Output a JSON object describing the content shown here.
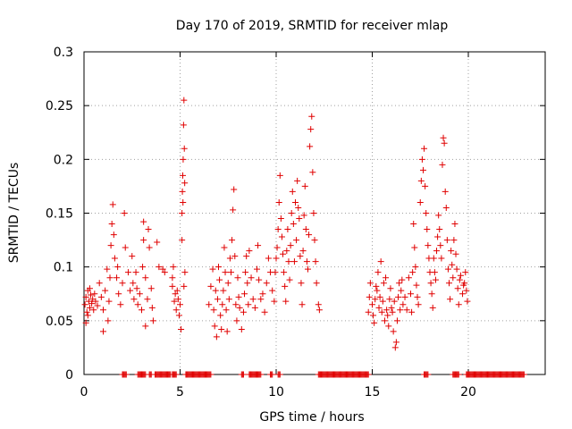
{
  "chart_data": {
    "type": "scatter",
    "title": "Day 170 of 2019, SRMTID for receiver mlap",
    "xlabel": "GPS time / hours",
    "ylabel": "SRMTID / TECUs",
    "xlim": [
      0,
      24
    ],
    "ylim": [
      0,
      0.3
    ],
    "grid": true,
    "x_ticks": [
      0,
      5,
      10,
      15,
      20
    ],
    "y_ticks": [
      0,
      0.05,
      0.1,
      0.15,
      0.2,
      0.25,
      0.3
    ],
    "x_tick_labels": [
      "0",
      "5",
      "10",
      "15",
      "20"
    ],
    "y_tick_labels": [
      "0",
      "0.05",
      "0.1",
      "0.15",
      "0.2",
      "0.25",
      "0.3"
    ],
    "marker": "+",
    "color": "#e00000",
    "series": [
      {
        "name": "SRMTID",
        "points": [
          [
            0.05,
            0.065
          ],
          [
            0.1,
            0.072
          ],
          [
            0.15,
            0.058
          ],
          [
            0.2,
            0.078
          ],
          [
            0.25,
            0.068
          ],
          [
            0.3,
            0.062
          ],
          [
            0.35,
            0.074
          ],
          [
            0.4,
            0.066
          ],
          [
            0.45,
            0.07
          ],
          [
            0.5,
            0.06
          ],
          [
            0.55,
            0.075
          ],
          [
            0.6,
            0.068
          ],
          [
            0.1,
            0.048
          ],
          [
            0.2,
            0.055
          ],
          [
            0.3,
            0.08
          ],
          [
            0.7,
            0.064
          ],
          [
            0.8,
            0.085
          ],
          [
            0.9,
            0.072
          ],
          [
            1.0,
            0.04
          ],
          [
            1.0,
            0.06
          ],
          [
            1.1,
            0.078
          ],
          [
            1.2,
            0.098
          ],
          [
            1.25,
            0.05
          ],
          [
            1.3,
            0.068
          ],
          [
            1.35,
            0.09
          ],
          [
            1.4,
            0.12
          ],
          [
            1.45,
            0.14
          ],
          [
            1.5,
            0.158
          ],
          [
            1.55,
            0.13
          ],
          [
            1.6,
            0.108
          ],
          [
            1.7,
            0.09
          ],
          [
            1.75,
            0.1
          ],
          [
            1.8,
            0.075
          ],
          [
            1.9,
            0.065
          ],
          [
            2.0,
            0.085
          ],
          [
            2.1,
            0.15
          ],
          [
            2.15,
            0.118
          ],
          [
            2.3,
            0.095
          ],
          [
            2.4,
            0.078
          ],
          [
            2.5,
            0.11
          ],
          [
            2.55,
            0.085
          ],
          [
            2.6,
            0.07
          ],
          [
            2.7,
            0.095
          ],
          [
            2.75,
            0.08
          ],
          [
            2.8,
            0.065
          ],
          [
            2.9,
            0.075
          ],
          [
            3.0,
            0.06
          ],
          [
            3.05,
            0.1
          ],
          [
            3.1,
            0.125
          ],
          [
            3.2,
            0.09
          ],
          [
            3.3,
            0.07
          ],
          [
            3.35,
            0.135
          ],
          [
            3.4,
            0.118
          ],
          [
            3.5,
            0.08
          ],
          [
            3.55,
            0.062
          ],
          [
            3.6,
            0.05
          ],
          [
            3.1,
            0.142
          ],
          [
            3.2,
            0.045
          ],
          [
            3.8,
            0.123
          ],
          [
            3.9,
            0.1
          ],
          [
            4.1,
            0.098
          ],
          [
            4.2,
            0.095
          ],
          [
            4.6,
            0.082
          ],
          [
            4.7,
            0.068
          ],
          [
            4.75,
            0.075
          ],
          [
            4.8,
            0.06
          ],
          [
            4.85,
            0.078
          ],
          [
            4.9,
            0.07
          ],
          [
            4.95,
            0.055
          ],
          [
            5.0,
            0.065
          ],
          [
            4.6,
            0.09
          ],
          [
            4.65,
            0.1
          ],
          [
            5.05,
            0.042
          ],
          [
            5.1,
            0.15
          ],
          [
            5.12,
            0.17
          ],
          [
            5.14,
            0.185
          ],
          [
            5.16,
            0.2
          ],
          [
            5.18,
            0.232
          ],
          [
            5.2,
            0.255
          ],
          [
            5.22,
            0.21
          ],
          [
            5.24,
            0.178
          ],
          [
            5.1,
            0.125
          ],
          [
            5.15,
            0.16
          ],
          [
            5.2,
            0.082
          ],
          [
            5.25,
            0.095
          ],
          [
            6.5,
            0.065
          ],
          [
            6.6,
            0.082
          ],
          [
            6.7,
            0.098
          ],
          [
            6.75,
            0.06
          ],
          [
            6.8,
            0.045
          ],
          [
            6.85,
            0.078
          ],
          [
            6.9,
            0.035
          ],
          [
            6.95,
            0.07
          ],
          [
            7.0,
            0.1
          ],
          [
            7.05,
            0.088
          ],
          [
            7.1,
            0.055
          ],
          [
            7.15,
            0.042
          ],
          [
            7.2,
            0.065
          ],
          [
            7.25,
            0.078
          ],
          [
            7.3,
            0.118
          ],
          [
            7.35,
            0.095
          ],
          [
            7.4,
            0.06
          ],
          [
            7.45,
            0.04
          ],
          [
            7.5,
            0.085
          ],
          [
            7.55,
            0.07
          ],
          [
            7.6,
            0.108
          ],
          [
            7.65,
            0.095
          ],
          [
            7.7,
            0.125
          ],
          [
            7.75,
            0.153
          ],
          [
            7.8,
            0.172
          ],
          [
            7.85,
            0.11
          ],
          [
            7.9,
            0.065
          ],
          [
            7.95,
            0.05
          ],
          [
            8.0,
            0.09
          ],
          [
            8.05,
            0.072
          ],
          [
            8.1,
            0.062
          ],
          [
            8.2,
            0.042
          ],
          [
            8.3,
            0.058
          ],
          [
            8.35,
            0.075
          ],
          [
            8.4,
            0.095
          ],
          [
            8.45,
            0.11
          ],
          [
            8.5,
            0.085
          ],
          [
            8.55,
            0.065
          ],
          [
            8.6,
            0.115
          ],
          [
            8.7,
            0.09
          ],
          [
            8.8,
            0.07
          ],
          [
            8.9,
            0.062
          ],
          [
            9.0,
            0.098
          ],
          [
            9.05,
            0.12
          ],
          [
            9.1,
            0.088
          ],
          [
            9.2,
            0.07
          ],
          [
            9.3,
            0.075
          ],
          [
            9.4,
            0.058
          ],
          [
            9.5,
            0.085
          ],
          [
            9.6,
            0.108
          ],
          [
            9.7,
            0.095
          ],
          [
            9.8,
            0.078
          ],
          [
            9.9,
            0.068
          ],
          [
            9.95,
            0.095
          ],
          [
            10.0,
            0.108
          ],
          [
            10.05,
            0.118
          ],
          [
            10.1,
            0.135
          ],
          [
            10.15,
            0.16
          ],
          [
            10.2,
            0.185
          ],
          [
            10.25,
            0.145
          ],
          [
            10.3,
            0.128
          ],
          [
            10.35,
            0.112
          ],
          [
            10.4,
            0.095
          ],
          [
            10.45,
            0.082
          ],
          [
            10.5,
            0.068
          ],
          [
            10.55,
            0.115
          ],
          [
            10.6,
            0.135
          ],
          [
            10.65,
            0.105
          ],
          [
            10.7,
            0.088
          ],
          [
            10.75,
            0.12
          ],
          [
            10.8,
            0.15
          ],
          [
            10.85,
            0.17
          ],
          [
            10.9,
            0.14
          ],
          [
            10.95,
            0.105
          ],
          [
            11.0,
            0.16
          ],
          [
            11.05,
            0.125
          ],
          [
            11.1,
            0.18
          ],
          [
            11.15,
            0.155
          ],
          [
            11.2,
            0.145
          ],
          [
            11.25,
            0.11
          ],
          [
            11.3,
            0.085
          ],
          [
            11.35,
            0.065
          ],
          [
            11.4,
            0.115
          ],
          [
            11.45,
            0.148
          ],
          [
            11.5,
            0.175
          ],
          [
            11.55,
            0.135
          ],
          [
            11.6,
            0.105
          ],
          [
            11.65,
            0.098
          ],
          [
            11.7,
            0.13
          ],
          [
            11.75,
            0.212
          ],
          [
            11.8,
            0.228
          ],
          [
            11.85,
            0.24
          ],
          [
            11.9,
            0.188
          ],
          [
            11.95,
            0.15
          ],
          [
            12.0,
            0.125
          ],
          [
            12.05,
            0.105
          ],
          [
            12.1,
            0.085
          ],
          [
            12.2,
            0.065
          ],
          [
            12.25,
            0.06
          ],
          [
            14.8,
            0.058
          ],
          [
            14.85,
            0.072
          ],
          [
            14.9,
            0.085
          ],
          [
            15.0,
            0.065
          ],
          [
            15.05,
            0.055
          ],
          [
            15.1,
            0.048
          ],
          [
            15.15,
            0.07
          ],
          [
            15.2,
            0.082
          ],
          [
            15.25,
            0.078
          ],
          [
            15.3,
            0.095
          ],
          [
            15.35,
            0.062
          ],
          [
            15.4,
            0.072
          ],
          [
            15.45,
            0.105
          ],
          [
            15.5,
            0.058
          ],
          [
            15.55,
            0.068
          ],
          [
            15.6,
            0.085
          ],
          [
            15.65,
            0.05
          ],
          [
            15.7,
            0.09
          ],
          [
            15.75,
            0.06
          ],
          [
            15.8,
            0.055
          ],
          [
            15.85,
            0.045
          ],
          [
            15.9,
            0.07
          ],
          [
            15.95,
            0.08
          ],
          [
            16.0,
            0.062
          ],
          [
            16.05,
            0.058
          ],
          [
            16.1,
            0.04
          ],
          [
            16.15,
            0.068
          ],
          [
            16.2,
            0.025
          ],
          [
            16.25,
            0.03
          ],
          [
            16.3,
            0.05
          ],
          [
            16.35,
            0.072
          ],
          [
            16.4,
            0.085
          ],
          [
            16.45,
            0.06
          ],
          [
            16.5,
            0.078
          ],
          [
            16.55,
            0.088
          ],
          [
            16.6,
            0.065
          ],
          [
            16.7,
            0.072
          ],
          [
            16.8,
            0.06
          ],
          [
            16.9,
            0.09
          ],
          [
            17.0,
            0.075
          ],
          [
            17.05,
            0.058
          ],
          [
            17.1,
            0.095
          ],
          [
            17.15,
            0.14
          ],
          [
            17.2,
            0.118
          ],
          [
            17.25,
            0.1
          ],
          [
            17.3,
            0.083
          ],
          [
            17.35,
            0.072
          ],
          [
            17.4,
            0.065
          ],
          [
            17.5,
            0.16
          ],
          [
            17.55,
            0.18
          ],
          [
            17.6,
            0.2
          ],
          [
            17.65,
            0.19
          ],
          [
            17.7,
            0.21
          ],
          [
            17.75,
            0.175
          ],
          [
            17.8,
            0.15
          ],
          [
            17.85,
            0.135
          ],
          [
            17.9,
            0.12
          ],
          [
            17.95,
            0.108
          ],
          [
            18.0,
            0.095
          ],
          [
            18.05,
            0.085
          ],
          [
            18.1,
            0.075
          ],
          [
            18.15,
            0.062
          ],
          [
            18.2,
            0.108
          ],
          [
            18.25,
            0.095
          ],
          [
            18.3,
            0.088
          ],
          [
            18.35,
            0.115
          ],
          [
            18.4,
            0.128
          ],
          [
            18.45,
            0.148
          ],
          [
            18.5,
            0.135
          ],
          [
            18.55,
            0.12
          ],
          [
            18.6,
            0.108
          ],
          [
            18.65,
            0.195
          ],
          [
            18.7,
            0.22
          ],
          [
            18.75,
            0.215
          ],
          [
            18.8,
            0.17
          ],
          [
            18.85,
            0.155
          ],
          [
            18.9,
            0.125
          ],
          [
            18.95,
            0.098
          ],
          [
            19.0,
            0.085
          ],
          [
            19.05,
            0.07
          ],
          [
            19.1,
            0.115
          ],
          [
            19.15,
            0.102
          ],
          [
            19.2,
            0.09
          ],
          [
            19.25,
            0.125
          ],
          [
            19.3,
            0.14
          ],
          [
            19.35,
            0.112
          ],
          [
            19.4,
            0.098
          ],
          [
            19.45,
            0.08
          ],
          [
            19.5,
            0.065
          ],
          [
            19.55,
            0.088
          ],
          [
            19.6,
            0.092
          ],
          [
            19.7,
            0.075
          ],
          [
            19.8,
            0.085
          ],
          [
            19.85,
            0.095
          ],
          [
            19.9,
            0.078
          ],
          [
            19.95,
            0.068
          ],
          [
            19.75,
            0.083
          ]
        ]
      }
    ],
    "zero_segments": [
      [
        2.0,
        2.2
      ],
      [
        2.8,
        3.2
      ],
      [
        3.4,
        3.5
      ],
      [
        3.7,
        4.5
      ],
      [
        4.6,
        4.8
      ],
      [
        5.3,
        6.6
      ],
      [
        8.2,
        8.3
      ],
      [
        8.6,
        9.2
      ],
      [
        9.7,
        9.8
      ],
      [
        10.1,
        10.2
      ],
      [
        12.2,
        14.8
      ],
      [
        17.7,
        17.9
      ],
      [
        19.2,
        19.5
      ],
      [
        19.9,
        22.9
      ]
    ]
  }
}
